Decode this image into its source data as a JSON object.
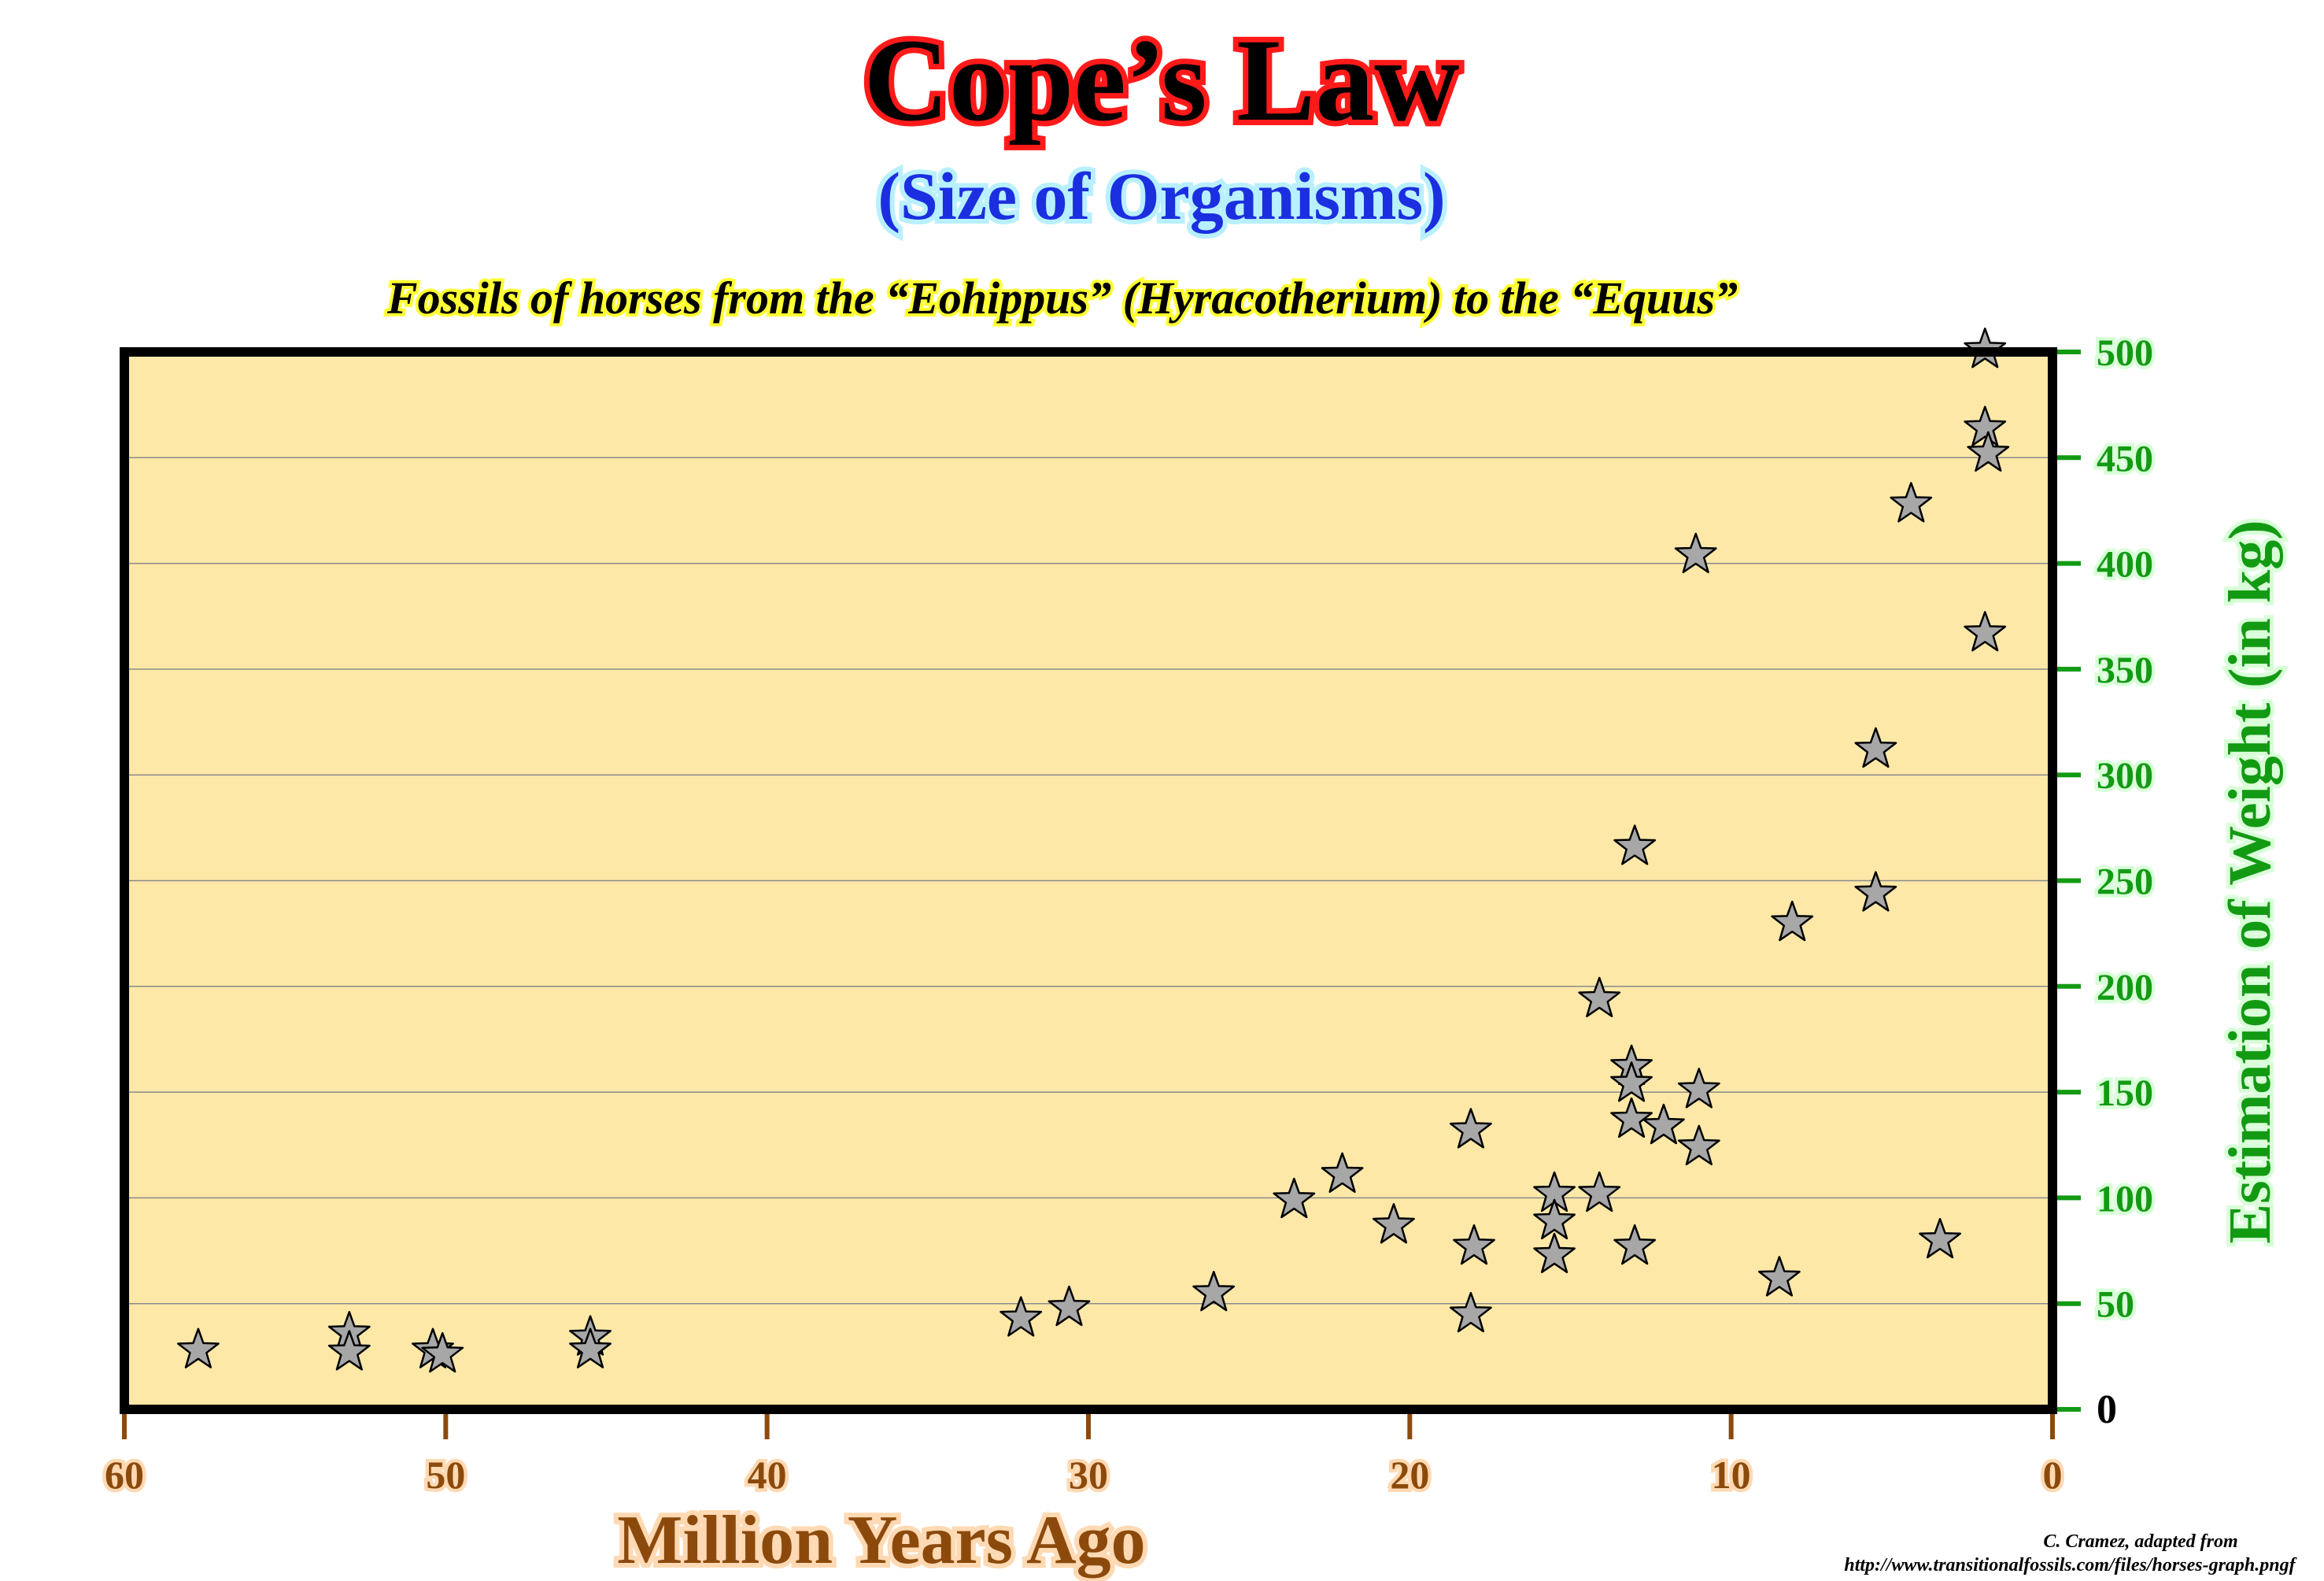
{
  "title": "Cope’s Law",
  "subtitle": "(Size of Organisms)",
  "description": "Fossils of horses from the “Eohippus” (Hyracotherium) to the “Equus”",
  "credit": {
    "line1": "C. Cramez, adapted from",
    "line2": "http://www.transitionalfossils.com/files/horses-graph.pngf"
  },
  "colors": {
    "plot_background": "#fde8a8",
    "frame": "#000000",
    "gridline": "#8a8a8a",
    "marker_fill": "#a7a7a7",
    "marker_stroke": "#000000",
    "x_axis_color": "#8b4a0c",
    "y_axis_color": "#139a13",
    "title_outline": "#ff1a1a",
    "subtitle_fill": "#1b2fe0"
  },
  "chart_data": {
    "type": "scatter",
    "marker": "star",
    "xlabel": "Million Years Ago",
    "ylabel": "Estimation of Weight (in kg)",
    "xlim": [
      60,
      0
    ],
    "ylim": [
      0,
      500
    ],
    "x_reversed": true,
    "y_axis_position": "right",
    "grid": "horizontal",
    "xticks": [
      60,
      50,
      40,
      30,
      20,
      10,
      0
    ],
    "yticks": [
      0,
      50,
      100,
      150,
      200,
      250,
      300,
      350,
      400,
      450,
      500
    ],
    "points": [
      {
        "x": 57.7,
        "y": 28
      },
      {
        "x": 53.0,
        "y": 36
      },
      {
        "x": 53.0,
        "y": 27
      },
      {
        "x": 50.4,
        "y": 28
      },
      {
        "x": 50.1,
        "y": 26
      },
      {
        "x": 45.5,
        "y": 34
      },
      {
        "x": 45.5,
        "y": 28
      },
      {
        "x": 32.1,
        "y": 43
      },
      {
        "x": 30.6,
        "y": 48
      },
      {
        "x": 26.1,
        "y": 55
      },
      {
        "x": 23.6,
        "y": 99
      },
      {
        "x": 22.1,
        "y": 111
      },
      {
        "x": 20.5,
        "y": 87
      },
      {
        "x": 18.1,
        "y": 132
      },
      {
        "x": 18.0,
        "y": 77
      },
      {
        "x": 18.1,
        "y": 45
      },
      {
        "x": 15.5,
        "y": 102
      },
      {
        "x": 15.5,
        "y": 89
      },
      {
        "x": 15.5,
        "y": 73
      },
      {
        "x": 14.1,
        "y": 102
      },
      {
        "x": 14.1,
        "y": 194
      },
      {
        "x": 13.0,
        "y": 266
      },
      {
        "x": 13.1,
        "y": 162
      },
      {
        "x": 13.1,
        "y": 154
      },
      {
        "x": 13.1,
        "y": 137
      },
      {
        "x": 13.0,
        "y": 77
      },
      {
        "x": 12.1,
        "y": 134
      },
      {
        "x": 11.1,
        "y": 404
      },
      {
        "x": 11.0,
        "y": 151
      },
      {
        "x": 11.0,
        "y": 124
      },
      {
        "x": 8.5,
        "y": 62
      },
      {
        "x": 8.1,
        "y": 230
      },
      {
        "x": 5.5,
        "y": 312
      },
      {
        "x": 5.5,
        "y": 244
      },
      {
        "x": 4.4,
        "y": 428
      },
      {
        "x": 3.5,
        "y": 80
      },
      {
        "x": 2.1,
        "y": 501
      },
      {
        "x": 2.1,
        "y": 464
      },
      {
        "x": 2.0,
        "y": 452
      },
      {
        "x": 2.1,
        "y": 367
      }
    ]
  }
}
